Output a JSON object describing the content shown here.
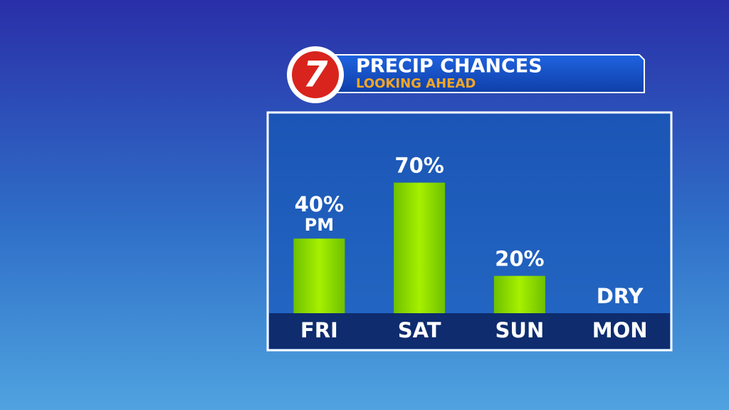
{
  "chart_data": {
    "type": "bar",
    "logo": "7",
    "title": "PRECIP CHANCES",
    "subtitle": "LOOKING AHEAD",
    "categories": [
      "FRI",
      "SAT",
      "SUN",
      "MON"
    ],
    "values": [
      40,
      70,
      20,
      0
    ],
    "value_labels": [
      "40%",
      "70%",
      "20%",
      "DRY"
    ],
    "annotations": [
      "PM"
    ],
    "color": "#8fe000"
  }
}
